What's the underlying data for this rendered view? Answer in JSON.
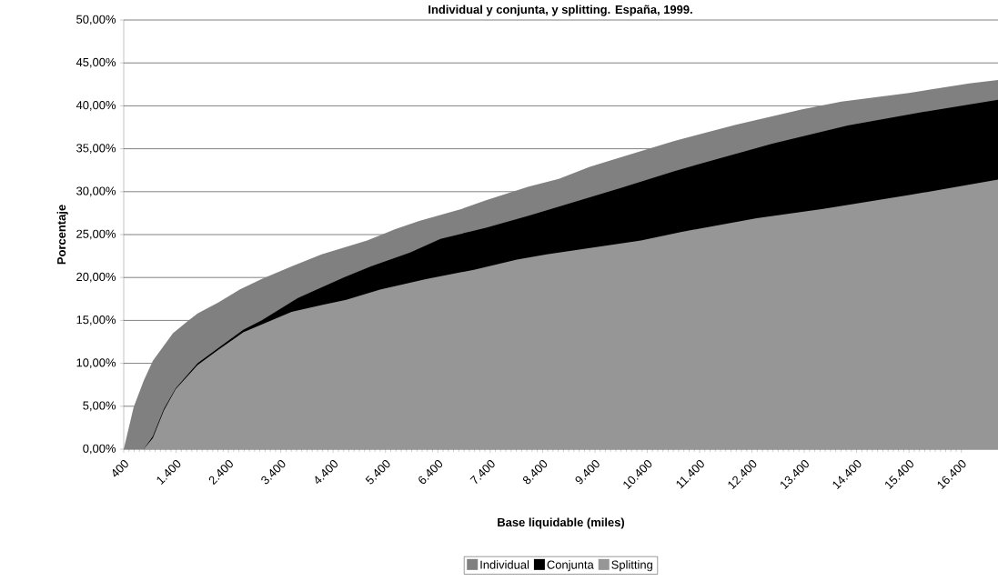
{
  "chart_data": {
    "type": "area",
    "title": "Individual y conjunta, y splitting. España, 1999.",
    "xlabel": "Base liquidable (miles)",
    "ylabel": "Porcentaje",
    "xlim": [
      400,
      17100
    ],
    "xticks": [
      {
        "value": 400,
        "label": "400"
      },
      {
        "value": 1400,
        "label": "1.400"
      },
      {
        "value": 2400,
        "label": "2.400"
      },
      {
        "value": 3400,
        "label": "3.400"
      },
      {
        "value": 4400,
        "label": "4.400"
      },
      {
        "value": 5400,
        "label": "5.400"
      },
      {
        "value": 6400,
        "label": "6.400"
      },
      {
        "value": 7400,
        "label": "7.400"
      },
      {
        "value": 8400,
        "label": "8.400"
      },
      {
        "value": 9400,
        "label": "9.400"
      },
      {
        "value": 10400,
        "label": "10.400"
      },
      {
        "value": 11400,
        "label": "11.400"
      },
      {
        "value": 12400,
        "label": "12.400"
      },
      {
        "value": 13400,
        "label": "13.400"
      },
      {
        "value": 14400,
        "label": "14.400"
      },
      {
        "value": 15400,
        "label": "15.400"
      },
      {
        "value": 16400,
        "label": "16.400"
      }
    ],
    "ylim": [
      0,
      50
    ],
    "yticks": [
      {
        "value": 0,
        "label": "0,00%"
      },
      {
        "value": 5,
        "label": "5,00%"
      },
      {
        "value": 10,
        "label": "10,00%"
      },
      {
        "value": 15,
        "label": "15,00%"
      },
      {
        "value": 20,
        "label": "20,00%"
      },
      {
        "value": 25,
        "label": "25,00%"
      },
      {
        "value": 30,
        "label": "30,00%"
      },
      {
        "value": 35,
        "label": "35,00%"
      },
      {
        "value": 40,
        "label": "40,00%"
      },
      {
        "value": 45,
        "label": "45,00%"
      },
      {
        "value": 50,
        "label": "50,00%"
      }
    ],
    "grid": "y",
    "legend": "bottom",
    "series": [
      {
        "name": "Individual",
        "color": "#808080",
        "x": [
          400,
          590,
          783,
          957,
          1340,
          1637,
          1811,
          2212,
          2613,
          3030,
          3606,
          4180,
          5050,
          5575,
          6045,
          6860,
          7320,
          8135,
          8710,
          9300,
          10050,
          10920,
          12090,
          13360,
          14110,
          15400,
          16550,
          17100
        ],
        "values": [
          0,
          4.9,
          8.0,
          10.3,
          13.5,
          15.0,
          15.8,
          17.1,
          18.6,
          19.8,
          21.3,
          22.7,
          24.3,
          25.6,
          26.6,
          28.0,
          29.0,
          30.6,
          31.5,
          32.9,
          34.3,
          35.9,
          37.8,
          39.6,
          40.5,
          41.5,
          42.6,
          43.0
        ]
      },
      {
        "name": "Conjunta",
        "color": "#000000",
        "x": [
          783,
          957,
          1167,
          1393,
          1811,
          2212,
          2682,
          3030,
          3727,
          4600,
          5120,
          5870,
          6450,
          7320,
          8135,
          9880,
          10920,
          12790,
          14230,
          15680,
          17100
        ],
        "values": [
          0,
          1.5,
          4.7,
          7.1,
          10.0,
          11.8,
          13.9,
          15.0,
          17.6,
          20.0,
          21.3,
          22.9,
          24.5,
          25.8,
          27.2,
          30.4,
          32.4,
          35.6,
          37.7,
          39.3,
          40.7
        ]
      },
      {
        "name": "Splitting",
        "color": "#969696",
        "x": [
          783,
          957,
          1167,
          1393,
          1811,
          2212,
          2682,
          3030,
          3606,
          4180,
          4650,
          5295,
          6170,
          7090,
          7910,
          8480,
          10280,
          11040,
          12490,
          13760,
          15400,
          17100
        ],
        "values": [
          0,
          1.3,
          4.5,
          7.0,
          9.8,
          11.6,
          13.6,
          14.5,
          16.0,
          16.8,
          17.4,
          18.6,
          19.8,
          20.9,
          22.1,
          22.7,
          24.3,
          25.3,
          26.9,
          28.0,
          29.6,
          31.4
        ]
      }
    ]
  }
}
